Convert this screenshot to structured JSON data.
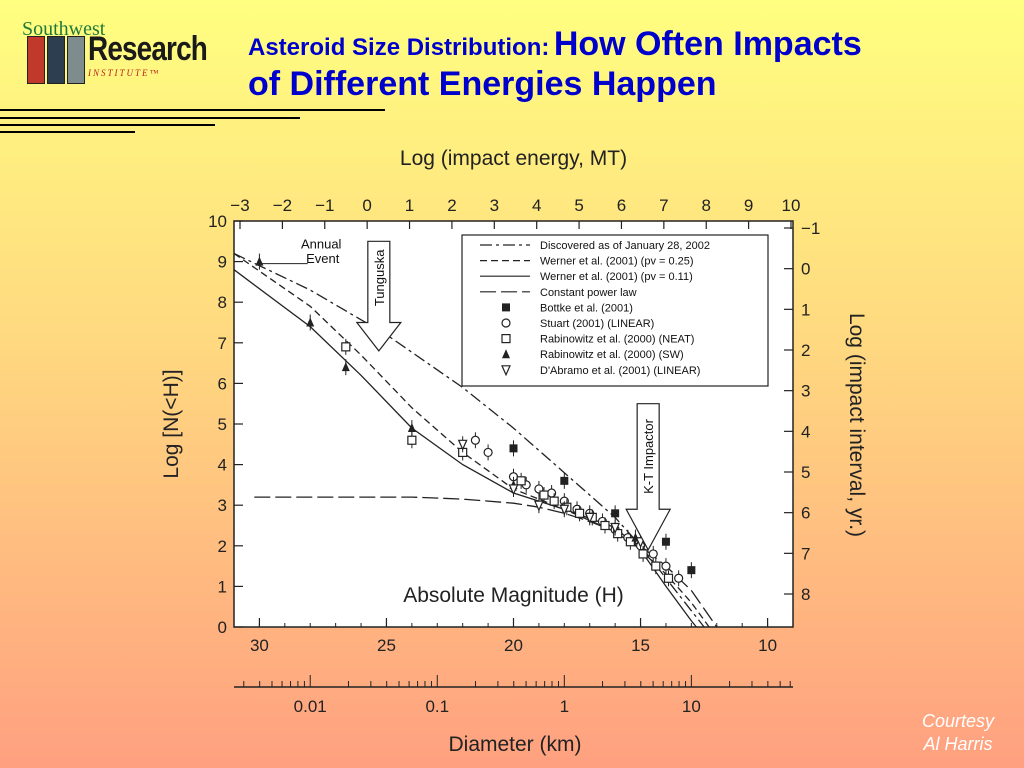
{
  "logo": {
    "top": "Southwest",
    "main": "Research",
    "sub": "INSTITUTE™"
  },
  "title": {
    "line1": "Asteroid Size Distribution:",
    "line2": "How Often Impacts",
    "line3": "of Different Energies Happen"
  },
  "courtesy": {
    "line1": "Courtesy",
    "line2": "Al Harris"
  },
  "colors": {
    "title": "#0000cc",
    "plot_bg": "#ffffff",
    "ink": "#222222"
  },
  "chart_data": {
    "type": "line",
    "axes": {
      "x_bottom": {
        "label": "Absolute Magnitude (H)",
        "range": [
          31,
          9
        ],
        "ticks": [
          30,
          25,
          20,
          15,
          10
        ]
      },
      "x_top": {
        "label": "Log (impact energy, MT)",
        "ticks": [
          "−3",
          "−2",
          "−1",
          "0",
          "1",
          "2",
          "3",
          "4",
          "5",
          "6",
          "7",
          "8",
          "9",
          "10"
        ]
      },
      "y_left": {
        "label": "Log [N(<H)]",
        "range": [
          0,
          10
        ],
        "ticks": [
          0,
          1,
          2,
          3,
          4,
          5,
          6,
          7,
          8,
          9,
          10
        ]
      },
      "y_right": {
        "label": "Log (impact interval, yr.)",
        "ticks": [
          "−1",
          "0",
          "1",
          "2",
          "3",
          "4",
          "5",
          "6",
          "7",
          "8"
        ]
      },
      "diameter": {
        "label": "Diameter (km)",
        "ticks": [
          "0.01",
          "0.1",
          "1",
          "10"
        ],
        "tick_h": [
          28,
          23,
          18,
          13
        ]
      }
    },
    "annotations": [
      {
        "text": "Annual",
        "h": 28.6,
        "y": 9.42
      },
      {
        "text": "Event",
        "h": 28.4,
        "y": 9.07
      },
      {
        "text": "Tunguska",
        "h": 25.3,
        "y": 8.0,
        "arrow": true
      },
      {
        "text": "K-T Impactor",
        "h": 14.7,
        "y": 4.3,
        "arrow": true
      }
    ],
    "legend": {
      "position": "top-right",
      "entries": [
        {
          "symbol": "dashdot",
          "text": "Discovered as of January 28, 2002"
        },
        {
          "symbol": "dashed",
          "text": "Werner et al. (2001) (pv = 0.25)"
        },
        {
          "symbol": "solid",
          "text": "Werner et al. (2001) (pv = 0.11)"
        },
        {
          "symbol": "longdash",
          "text": "Constant power law"
        },
        {
          "symbol": "filled-square",
          "text": "Bottke et al. (2001)"
        },
        {
          "symbol": "circle",
          "text": "Stuart (2001) (LINEAR)"
        },
        {
          "symbol": "square",
          "text": "Rabinowitz et al. (2000) (NEAT)"
        },
        {
          "symbol": "triangle-up",
          "text": "Rabinowitz et al. (2000) (SW)"
        },
        {
          "symbol": "triangle-down",
          "text": "D'Abramo et al. (2001) (LINEAR)"
        }
      ]
    },
    "series": [
      {
        "name": "Discovered as of January 28, 2002",
        "style": "dashdot",
        "x": [
          31,
          28,
          25,
          22,
          20,
          18,
          16,
          15,
          14,
          13,
          12.5
        ],
        "y": [
          9.2,
          8.3,
          7.2,
          5.9,
          4.9,
          3.8,
          2.7,
          2.0,
          1.2,
          0.4,
          0.0
        ]
      },
      {
        "name": "Werner et al. (2001) (pv = 0.25)",
        "style": "dashed",
        "x": [
          31,
          28,
          26,
          24,
          22,
          20,
          18,
          16,
          15,
          14,
          13,
          12.3
        ],
        "y": [
          9.2,
          7.9,
          6.7,
          5.4,
          4.3,
          3.4,
          2.9,
          2.35,
          1.9,
          1.3,
          0.6,
          0.0
        ]
      },
      {
        "name": "Werner et al. (2001) (pv = 0.11)",
        "style": "solid",
        "x": [
          31,
          28,
          26,
          24,
          22,
          20,
          18,
          16,
          15,
          14,
          13,
          12.8
        ],
        "y": [
          8.8,
          7.4,
          6.2,
          4.9,
          4.0,
          3.3,
          2.9,
          2.45,
          1.9,
          1.0,
          0.15,
          0.0
        ]
      },
      {
        "name": "Constant power law",
        "style": "longdash",
        "x": [
          30.2,
          27,
          24,
          22,
          21,
          20,
          19,
          18,
          17,
          16,
          15,
          14,
          13,
          12
        ],
        "y": [
          3.2,
          3.2,
          3.2,
          3.15,
          3.1,
          3.05,
          2.95,
          2.8,
          2.6,
          2.35,
          2.0,
          1.5,
          0.9,
          0.0
        ]
      }
    ],
    "markers": {
      "filled-square": {
        "x": [
          20,
          18,
          16,
          14,
          13
        ],
        "y": [
          4.4,
          3.6,
          2.8,
          2.1,
          1.4
        ]
      },
      "circle": {
        "x": [
          21.5,
          21,
          20,
          19.5,
          19,
          18.5,
          18,
          17.5,
          17,
          16.5,
          16,
          15.5,
          15,
          14.5,
          14,
          13.5
        ],
        "y": [
          4.6,
          4.3,
          3.7,
          3.5,
          3.4,
          3.3,
          3.1,
          2.9,
          2.8,
          2.6,
          2.4,
          2.2,
          2.0,
          1.8,
          1.5,
          1.2
        ]
      },
      "square": {
        "x": [
          26.6,
          24,
          22,
          19.7,
          18.8,
          18.4,
          17.9,
          17.4,
          16.9,
          16.4,
          15.9,
          15.4,
          14.9,
          14.4,
          13.9
        ],
        "y": [
          6.9,
          4.6,
          4.3,
          3.6,
          3.25,
          3.1,
          2.95,
          2.8,
          2.7,
          2.5,
          2.3,
          2.1,
          1.8,
          1.5,
          1.2
        ]
      },
      "triangle-up": {
        "x": [
          30,
          28,
          26.6,
          24,
          20,
          15.2
        ],
        "y": [
          9.0,
          7.5,
          6.4,
          4.9,
          3.5,
          2.2
        ]
      },
      "triangle-down": {
        "x": [
          22,
          20,
          19,
          18,
          17,
          16,
          15
        ],
        "y": [
          4.5,
          3.4,
          3.0,
          2.9,
          2.7,
          2.45,
          2.1
        ]
      }
    }
  }
}
